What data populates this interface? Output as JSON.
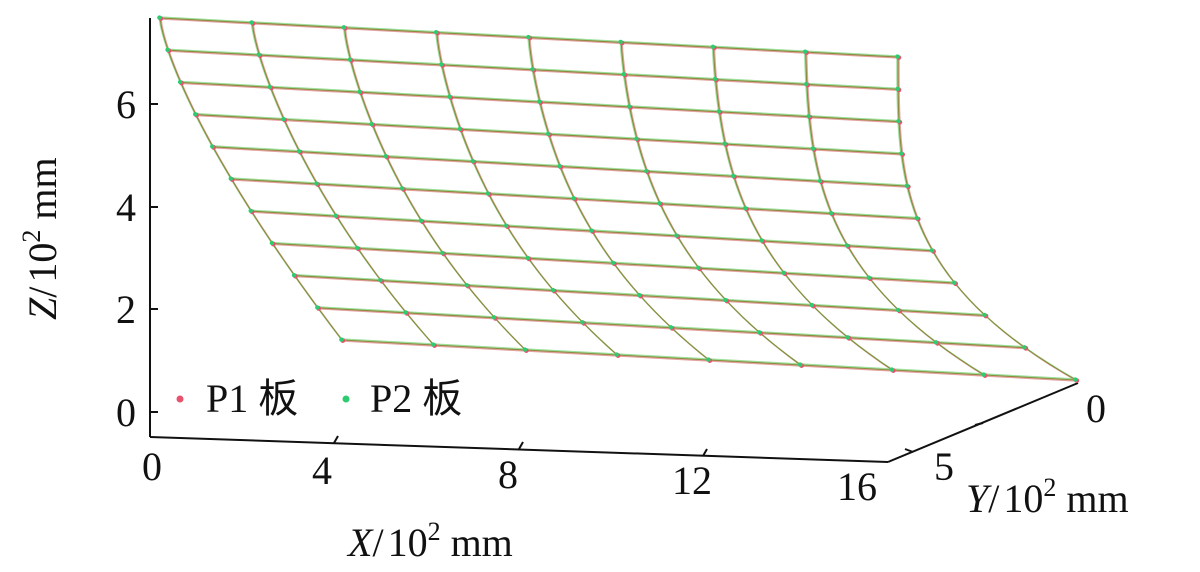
{
  "chart_data": {
    "type": "surface3d",
    "title": "",
    "axes": {
      "x": {
        "var": "X",
        "unit_base": "10",
        "unit_exp": "2",
        "unit_tail": "mm",
        "ticks": [
          0,
          4,
          8,
          12,
          16
        ],
        "range": [
          0,
          16
        ]
      },
      "y": {
        "var": "Y",
        "unit_base": "10",
        "unit_exp": "2",
        "unit_tail": "mm",
        "ticks": [
          0,
          5
        ],
        "range": [
          0,
          5
        ]
      },
      "z": {
        "var": "Z",
        "unit_base": "10",
        "unit_exp": "2",
        "unit_tail": "mm",
        "ticks": [
          0,
          2,
          4,
          6
        ],
        "range": [
          0,
          7.7
        ]
      }
    },
    "surface": {
      "x_values": [
        0,
        2,
        4,
        6,
        8,
        10,
        12,
        14,
        16
      ],
      "v_rows": 11,
      "description_values": {
        "row_z_left": [
          7.7,
          7.1,
          6.3,
          5.6,
          4.9,
          4.2,
          3.4,
          2.7,
          2.0,
          1.3,
          0.5
        ],
        "row_z_right": [
          7.0,
          6.3,
          5.7,
          5.0,
          4.3,
          3.7,
          3.0,
          2.4,
          1.7,
          1.0,
          0.3
        ]
      }
    },
    "series": [
      {
        "name": "P1 板",
        "color": "#e8526e"
      },
      {
        "name": "P2 板",
        "color": "#2ecc71"
      }
    ],
    "legend_position": "bottom-left",
    "grid": false,
    "mesh_line_colors": [
      "#e6a0a0",
      "#9be09b",
      "#8a8a3c"
    ]
  }
}
